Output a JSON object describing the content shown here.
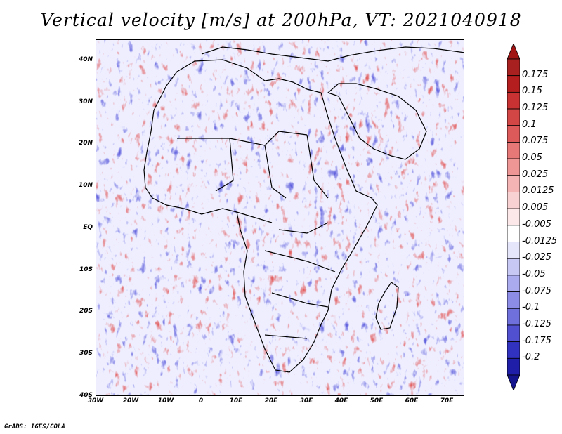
{
  "title": "Vertical velocity [m/s] at 200hPa, VT: 2021040918",
  "credit": "GrADS: IGES/COLA",
  "map": {
    "lon_range": [
      -30,
      75
    ],
    "lat_range": [
      -40,
      45
    ],
    "lat_ticks": [
      {
        "value": 40,
        "label": "40N"
      },
      {
        "value": 30,
        "label": "30N"
      },
      {
        "value": 20,
        "label": "20N"
      },
      {
        "value": 10,
        "label": "10N"
      },
      {
        "value": 0,
        "label": "EQ"
      },
      {
        "value": -10,
        "label": "10S"
      },
      {
        "value": -20,
        "label": "20S"
      },
      {
        "value": -30,
        "label": "30S"
      },
      {
        "value": -40,
        "label": "40S"
      }
    ],
    "lon_ticks": [
      {
        "value": -30,
        "label": "30W"
      },
      {
        "value": -20,
        "label": "20W"
      },
      {
        "value": -10,
        "label": "10W"
      },
      {
        "value": 0,
        "label": "0"
      },
      {
        "value": 10,
        "label": "10E"
      },
      {
        "value": 20,
        "label": "20E"
      },
      {
        "value": 30,
        "label": "30E"
      },
      {
        "value": 40,
        "label": "40E"
      },
      {
        "value": 50,
        "label": "50E"
      },
      {
        "value": 60,
        "label": "60E"
      },
      {
        "value": 70,
        "label": "70E"
      }
    ]
  },
  "colorbar": {
    "levels": [
      {
        "label": "0.175",
        "color": "#b41e1e"
      },
      {
        "label": "0.15",
        "color": "#c83232"
      },
      {
        "label": "0.125",
        "color": "#d24646"
      },
      {
        "label": "0.1",
        "color": "#dc5a5a"
      },
      {
        "label": "0.075",
        "color": "#e67878"
      },
      {
        "label": "0.05",
        "color": "#ee9696"
      },
      {
        "label": "0.025",
        "color": "#f4b4b4"
      },
      {
        "label": "0.0125",
        "color": "#f8d2d2"
      },
      {
        "label": "0.005",
        "color": "#fce8e8"
      },
      {
        "label": "-0.005",
        "color": "#ffffff"
      },
      {
        "label": "-0.0125",
        "color": "#e6e6fa"
      },
      {
        "label": "-0.025",
        "color": "#c8c8f4"
      },
      {
        "label": "-0.05",
        "color": "#aaaaee"
      },
      {
        "label": "-0.075",
        "color": "#8c8ce6"
      },
      {
        "label": "-0.1",
        "color": "#7070dc"
      },
      {
        "label": "-0.125",
        "color": "#5050d0"
      },
      {
        "label": "-0.175",
        "color": "#3232c0"
      },
      {
        "label": "-0.2",
        "color": "#1e1ea8"
      }
    ],
    "top_color": "#a01414",
    "bottom_color": "#14148c"
  }
}
